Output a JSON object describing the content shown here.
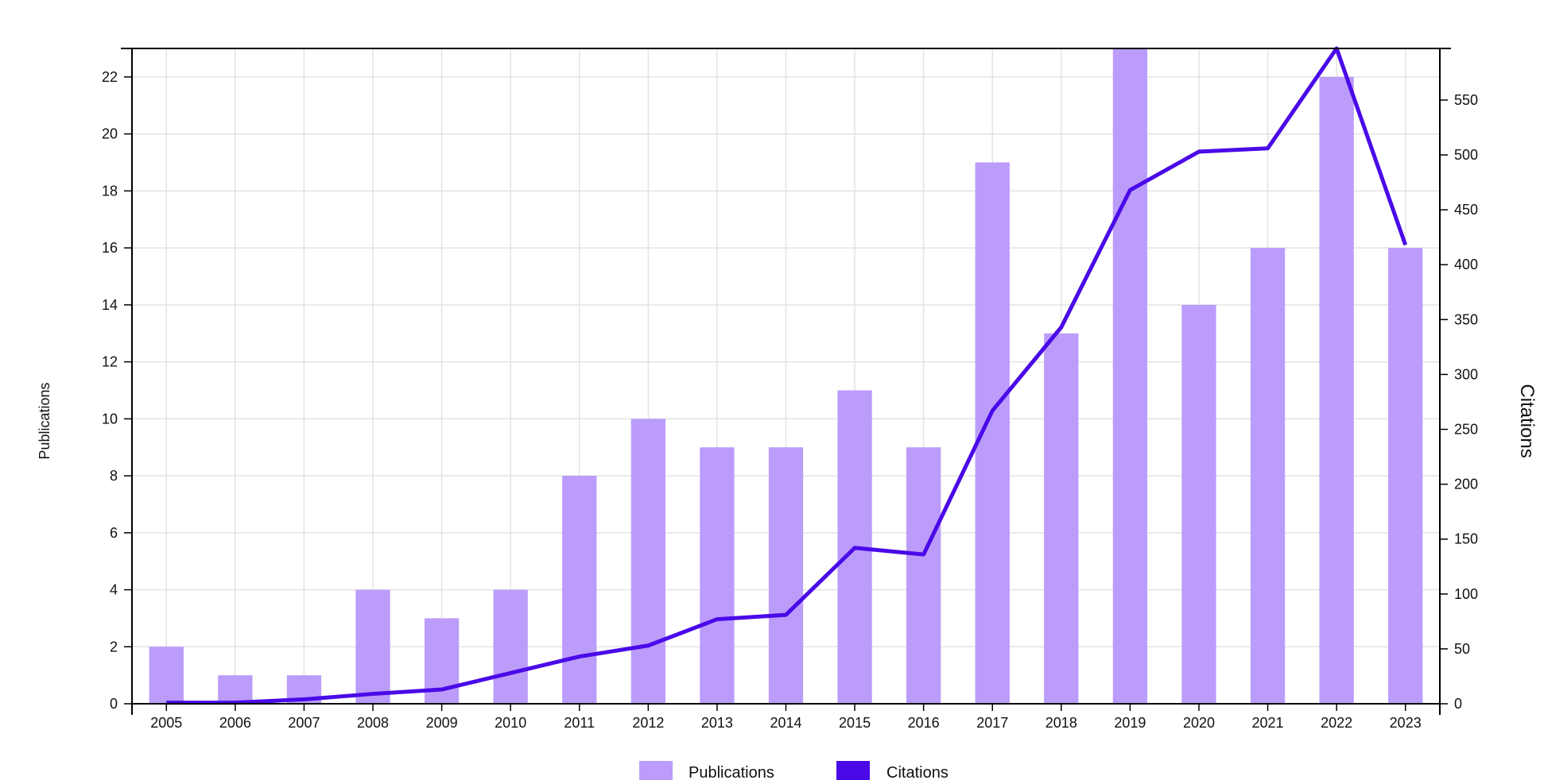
{
  "chart_data": {
    "type": "bar",
    "categories": [
      "2005",
      "2006",
      "2007",
      "2008",
      "2009",
      "2010",
      "2011",
      "2012",
      "2013",
      "2014",
      "2015",
      "2016",
      "2017",
      "2018",
      "2019",
      "2020",
      "2021",
      "2022",
      "2023"
    ],
    "series": [
      {
        "name": "Publications",
        "type": "bar",
        "axis": "left",
        "color": "#bb9cfb",
        "values": [
          2,
          1,
          1,
          4,
          3,
          4,
          8,
          10,
          9,
          9,
          11,
          9,
          19,
          13,
          23,
          14,
          16,
          22,
          16
        ]
      },
      {
        "name": "Citations",
        "type": "line",
        "axis": "right",
        "color": "#4a0ae8",
        "values": [
          1,
          1,
          4,
          9,
          13,
          28,
          43,
          53,
          77,
          81,
          142,
          136,
          267,
          343,
          468,
          503,
          506,
          597,
          418
        ]
      }
    ],
    "ylabel": "Publications",
    "y2label": "Citations",
    "ylim": [
      0,
      23
    ],
    "y2lim": [
      0,
      597
    ],
    "yticks": [
      0,
      2,
      4,
      6,
      8,
      10,
      12,
      14,
      16,
      18,
      20,
      22
    ],
    "y2ticks": [
      0,
      50,
      100,
      150,
      200,
      250,
      300,
      350,
      400,
      450,
      500,
      550
    ],
    "grid": true,
    "legend": "bottom-center"
  }
}
